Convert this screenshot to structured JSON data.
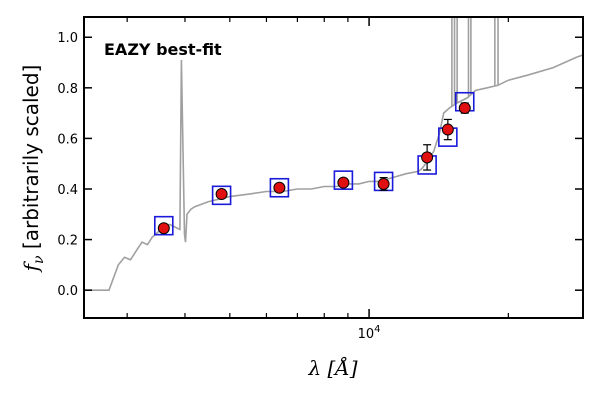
{
  "chart_data": {
    "type": "scatter",
    "title": "",
    "annotation": "EAZY best-fit",
    "xlabel": "λ [Å]",
    "ylabel": "f_ν [arbitrarily scaled]",
    "xscale": "log",
    "xlim": [
      2420,
      29000
    ],
    "ylim": [
      -0.11,
      1.08
    ],
    "yticks": [
      0.0,
      0.2,
      0.4,
      0.6,
      0.8,
      1.0
    ],
    "ytick_labels": [
      "0.0",
      "0.2",
      "0.4",
      "0.6",
      "0.8",
      "1.0"
    ],
    "xticks_major": [
      10000
    ],
    "xtick_major_label_base": "10",
    "xtick_major_label_exp": "4",
    "xticks_minor": [
      3000,
      4000,
      5000,
      6000,
      7000,
      8000,
      9000,
      20000
    ],
    "grid": false,
    "colors": {
      "template": "#a0a0a0",
      "observed_fill": "#e01010",
      "observed_edge": "#000000",
      "model_box": "#1a1adb",
      "annotation": "#ee0000"
    },
    "series": [
      {
        "kind": "template",
        "x": [
          2420,
          2740,
          2870,
          2960,
          3050,
          3150,
          3230,
          3320,
          3400,
          3500,
          3600,
          3700,
          3800,
          3900,
          3930,
          3990,
          4010,
          4040,
          4080,
          4120,
          4200,
          4500,
          5000,
          5500,
          6000,
          6500,
          7000,
          7500,
          8000,
          8500,
          9000,
          9500,
          10000,
          10500,
          11000,
          12000,
          12800,
          13000,
          13500,
          13800,
          14200,
          14500,
          14900,
          15500,
          16300,
          17000,
          18000,
          19000,
          20000,
          22000,
          25000,
          28000,
          29000
        ],
        "y": [
          0.0,
          0.0,
          0.1,
          0.13,
          0.12,
          0.16,
          0.19,
          0.18,
          0.21,
          0.23,
          0.25,
          0.26,
          0.25,
          0.24,
          0.91,
          0.22,
          0.19,
          0.3,
          0.31,
          0.32,
          0.33,
          0.35,
          0.37,
          0.38,
          0.39,
          0.39,
          0.4,
          0.4,
          0.41,
          0.41,
          0.42,
          0.42,
          0.43,
          0.43,
          0.44,
          0.46,
          0.47,
          0.48,
          0.52,
          0.55,
          0.62,
          0.7,
          0.72,
          0.74,
          0.76,
          0.79,
          0.8,
          0.81,
          0.83,
          0.85,
          0.88,
          0.92,
          0.93
        ]
      },
      {
        "kind": "emission_lines",
        "x": [
          15100,
          15300,
          15500,
          16400,
          16600,
          18700,
          19000
        ],
        "y": [
          1.08,
          1.08,
          1.08,
          1.08,
          1.08,
          1.08,
          1.08
        ]
      },
      {
        "kind": "model_photometry",
        "x": [
          3600,
          4800,
          6400,
          8800,
          10750,
          13350,
          14800,
          16100
        ],
        "y": [
          0.255,
          0.375,
          0.405,
          0.435,
          0.43,
          0.495,
          0.605,
          0.745
        ]
      },
      {
        "kind": "observed",
        "x": [
          3600,
          4800,
          6400,
          8800,
          10750,
          13350,
          14800,
          16100
        ],
        "y": [
          0.245,
          0.38,
          0.405,
          0.425,
          0.42,
          0.525,
          0.635,
          0.72
        ],
        "yerr": [
          0.01,
          0.01,
          0.01,
          0.01,
          0.025,
          0.05,
          0.04,
          0.02
        ]
      }
    ]
  }
}
